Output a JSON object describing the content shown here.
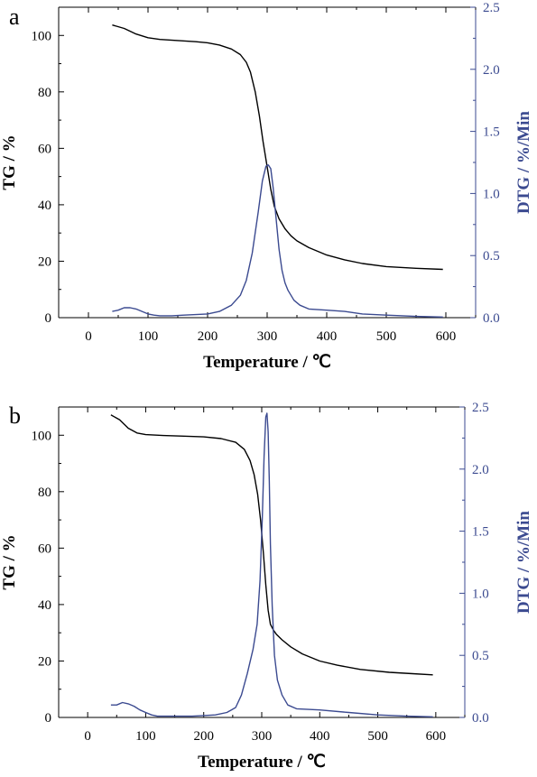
{
  "figure": {
    "panels": [
      {
        "label": "a"
      },
      {
        "label": "b"
      }
    ]
  },
  "chart_data": [
    {
      "type": "line",
      "panel": "a",
      "xlabel": "Temperature / ℃",
      "ylabel": "TG / %",
      "y2label": "DTG / %/Min",
      "xlim": [
        -50,
        650
      ],
      "ylim": [
        0,
        110
      ],
      "y2lim": [
        0,
        2.5
      ],
      "xticks": [
        0,
        100,
        200,
        300,
        400,
        500,
        600
      ],
      "yticks": [
        0,
        20,
        40,
        60,
        80,
        100
      ],
      "y2ticks": [
        "0.0",
        "0.5",
        "1.0",
        "1.5",
        "2.0",
        "2.5"
      ],
      "grid": false,
      "series": [
        {
          "axis": "left",
          "color": "#000000",
          "x": [
            40,
            60,
            80,
            100,
            120,
            150,
            180,
            200,
            220,
            240,
            255,
            265,
            272,
            280,
            287,
            293,
            300,
            306,
            312,
            320,
            330,
            340,
            350,
            370,
            400,
            430,
            460,
            500,
            550,
            595
          ],
          "y": [
            103.7,
            102.5,
            100.5,
            99.2,
            98.6,
            98.2,
            97.8,
            97.4,
            96.6,
            95.2,
            93.2,
            90.5,
            87.0,
            80.0,
            71.5,
            62.5,
            53.5,
            45.5,
            39.5,
            35.0,
            31.5,
            29.0,
            27.2,
            24.8,
            22.2,
            20.5,
            19.2,
            18.1,
            17.5,
            17.1
          ]
        },
        {
          "axis": "right",
          "color": "#3b4a90",
          "x": [
            40,
            50,
            60,
            70,
            80,
            90,
            100,
            110,
            120,
            140,
            160,
            180,
            200,
            220,
            240,
            255,
            265,
            275,
            285,
            292,
            298,
            302,
            306,
            310,
            315,
            320,
            325,
            330,
            335,
            345,
            355,
            370,
            400,
            430,
            460,
            500,
            550,
            595
          ],
          "y": [
            0.05,
            0.06,
            0.08,
            0.08,
            0.07,
            0.05,
            0.03,
            0.02,
            0.015,
            0.015,
            0.02,
            0.025,
            0.03,
            0.05,
            0.1,
            0.18,
            0.3,
            0.52,
            0.85,
            1.1,
            1.22,
            1.23,
            1.2,
            1.05,
            0.8,
            0.55,
            0.38,
            0.28,
            0.22,
            0.14,
            0.1,
            0.07,
            0.06,
            0.05,
            0.03,
            0.02,
            0.01,
            0.005
          ]
        }
      ]
    },
    {
      "type": "line",
      "panel": "b",
      "xlabel": "Temperature / ℃",
      "ylabel": "TG / %",
      "y2label": "DTG / %/Min",
      "xlim": [
        -50,
        650
      ],
      "ylim": [
        0,
        110
      ],
      "y2lim": [
        0,
        2.5
      ],
      "xticks": [
        0,
        100,
        200,
        300,
        400,
        500,
        600
      ],
      "yticks": [
        0,
        20,
        40,
        60,
        80,
        100
      ],
      "y2ticks": [
        "0.0",
        "0.5",
        "1.0",
        "1.5",
        "2.0",
        "2.5"
      ],
      "grid": false,
      "series": [
        {
          "axis": "left",
          "color": "#000000",
          "x": [
            40,
            55,
            70,
            85,
            100,
            130,
            160,
            200,
            230,
            255,
            270,
            280,
            287,
            293,
            298,
            303,
            307,
            311,
            315,
            320,
            325,
            335,
            350,
            370,
            400,
            430,
            470,
            520,
            560,
            595
          ],
          "y": [
            107.2,
            105.5,
            102.5,
            100.8,
            100.2,
            99.9,
            99.7,
            99.4,
            98.8,
            97.5,
            95.0,
            91.0,
            86.0,
            79.0,
            70.0,
            58.0,
            47.0,
            38.0,
            33.0,
            31.0,
            29.5,
            27.5,
            25.0,
            22.5,
            20.0,
            18.5,
            17.0,
            16.0,
            15.5,
            15.1
          ]
        },
        {
          "axis": "right",
          "color": "#3b4a90",
          "x": [
            40,
            50,
            60,
            70,
            80,
            90,
            100,
            110,
            120,
            140,
            160,
            180,
            200,
            220,
            240,
            255,
            265,
            275,
            285,
            292,
            297,
            301,
            304,
            307,
            309,
            311,
            313,
            315,
            318,
            322,
            327,
            335,
            345,
            360,
            400,
            450,
            500,
            550,
            595
          ],
          "y": [
            0.1,
            0.1,
            0.12,
            0.11,
            0.09,
            0.06,
            0.04,
            0.02,
            0.01,
            0.01,
            0.01,
            0.01,
            0.015,
            0.02,
            0.04,
            0.08,
            0.18,
            0.35,
            0.55,
            0.75,
            1.1,
            1.6,
            2.1,
            2.42,
            2.45,
            2.3,
            1.9,
            1.4,
            0.9,
            0.5,
            0.3,
            0.18,
            0.1,
            0.07,
            0.06,
            0.04,
            0.02,
            0.01,
            0.005
          ]
        }
      ]
    }
  ]
}
